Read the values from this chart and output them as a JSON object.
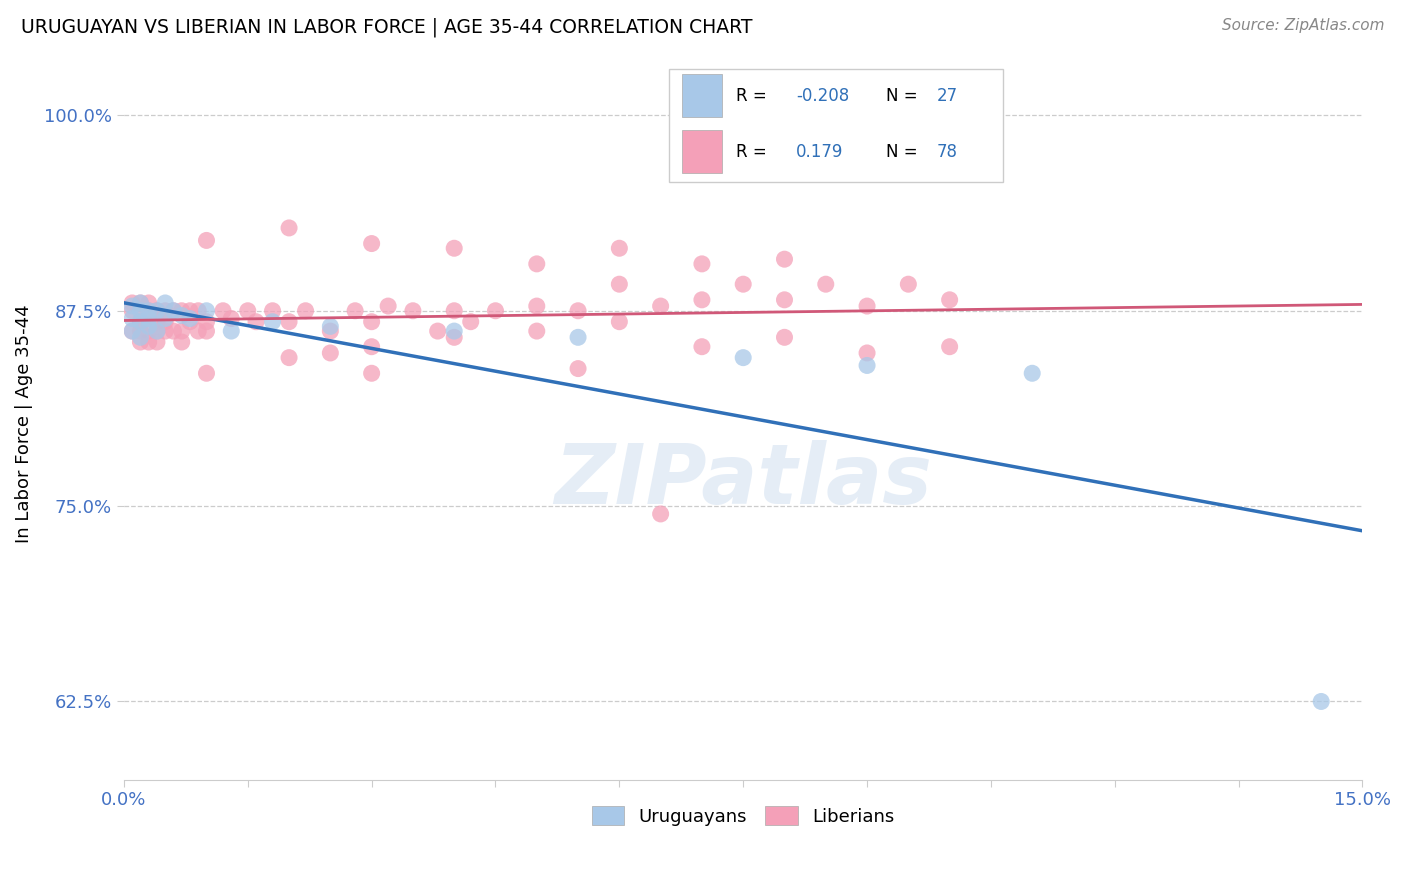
{
  "title": "URUGUAYAN VS LIBERIAN IN LABOR FORCE | AGE 35-44 CORRELATION CHART",
  "source_text": "Source: ZipAtlas.com",
  "ylabel": "In Labor Force | Age 35-44",
  "xlim": [
    0.0,
    0.15
  ],
  "ylim": [
    0.575,
    1.03
  ],
  "xtick_positions": [
    0.0,
    0.015,
    0.03,
    0.045,
    0.06,
    0.075,
    0.09,
    0.105,
    0.12,
    0.135,
    0.15
  ],
  "xticklabels": [
    "0.0%",
    "",
    "",
    "",
    "",
    "",
    "",
    "",
    "",
    "",
    "15.0%"
  ],
  "ytick_positions": [
    0.625,
    0.75,
    0.875,
    1.0
  ],
  "yticklabels": [
    "62.5%",
    "75.0%",
    "87.5%",
    "100.0%"
  ],
  "blue_color": "#a8c8e8",
  "pink_color": "#f4a0b8",
  "blue_line_color": "#3070b8",
  "pink_line_color": "#d05878",
  "watermark": "ZIPatlas",
  "legend_label_blue": "Uruguayans",
  "legend_label_pink": "Liberians",
  "legend_R_blue": "-0.208",
  "legend_R_pink": "0.179",
  "legend_N_blue": "27",
  "legend_N_pink": "78",
  "uru_x": [
    0.001,
    0.001,
    0.001,
    0.002,
    0.002,
    0.002,
    0.002,
    0.003,
    0.003,
    0.003,
    0.004,
    0.004,
    0.005,
    0.005,
    0.006,
    0.007,
    0.008,
    0.01,
    0.013,
    0.018,
    0.025,
    0.04,
    0.055,
    0.075,
    0.09,
    0.11,
    0.145
  ],
  "uru_y": [
    0.878,
    0.87,
    0.862,
    0.875,
    0.868,
    0.858,
    0.88,
    0.87,
    0.875,
    0.865,
    0.875,
    0.862,
    0.87,
    0.88,
    0.875,
    0.872,
    0.87,
    0.875,
    0.862,
    0.868,
    0.865,
    0.862,
    0.858,
    0.845,
    0.84,
    0.835,
    0.625
  ],
  "lib_x": [
    0.001,
    0.001,
    0.001,
    0.002,
    0.002,
    0.002,
    0.002,
    0.003,
    0.003,
    0.003,
    0.003,
    0.004,
    0.004,
    0.004,
    0.004,
    0.005,
    0.005,
    0.005,
    0.006,
    0.006,
    0.007,
    0.007,
    0.007,
    0.008,
    0.008,
    0.009,
    0.009,
    0.01,
    0.01,
    0.012,
    0.013,
    0.015,
    0.016,
    0.018,
    0.02,
    0.022,
    0.025,
    0.028,
    0.03,
    0.032,
    0.035,
    0.038,
    0.04,
    0.042,
    0.045,
    0.05,
    0.055,
    0.06,
    0.065,
    0.07,
    0.075,
    0.08,
    0.085,
    0.09,
    0.095,
    0.1,
    0.01,
    0.02,
    0.03,
    0.04,
    0.05,
    0.06,
    0.07,
    0.08,
    0.09,
    0.1,
    0.01,
    0.03,
    0.05,
    0.07,
    0.02,
    0.04,
    0.06,
    0.08,
    0.03,
    0.055,
    0.025,
    0.065
  ],
  "lib_y": [
    0.875,
    0.862,
    0.88,
    0.855,
    0.868,
    0.88,
    0.862,
    0.862,
    0.875,
    0.855,
    0.88,
    0.855,
    0.868,
    0.875,
    0.862,
    0.862,
    0.875,
    0.868,
    0.862,
    0.875,
    0.862,
    0.875,
    0.855,
    0.868,
    0.875,
    0.862,
    0.875,
    0.868,
    0.862,
    0.875,
    0.87,
    0.875,
    0.868,
    0.875,
    0.868,
    0.875,
    0.862,
    0.875,
    0.868,
    0.878,
    0.875,
    0.862,
    0.875,
    0.868,
    0.875,
    0.878,
    0.875,
    0.892,
    0.878,
    0.882,
    0.892,
    0.882,
    0.892,
    0.878,
    0.892,
    0.882,
    0.835,
    0.845,
    0.852,
    0.858,
    0.862,
    0.868,
    0.852,
    0.858,
    0.848,
    0.852,
    0.92,
    0.918,
    0.905,
    0.905,
    0.928,
    0.915,
    0.915,
    0.908,
    0.835,
    0.838,
    0.848,
    0.745
  ]
}
